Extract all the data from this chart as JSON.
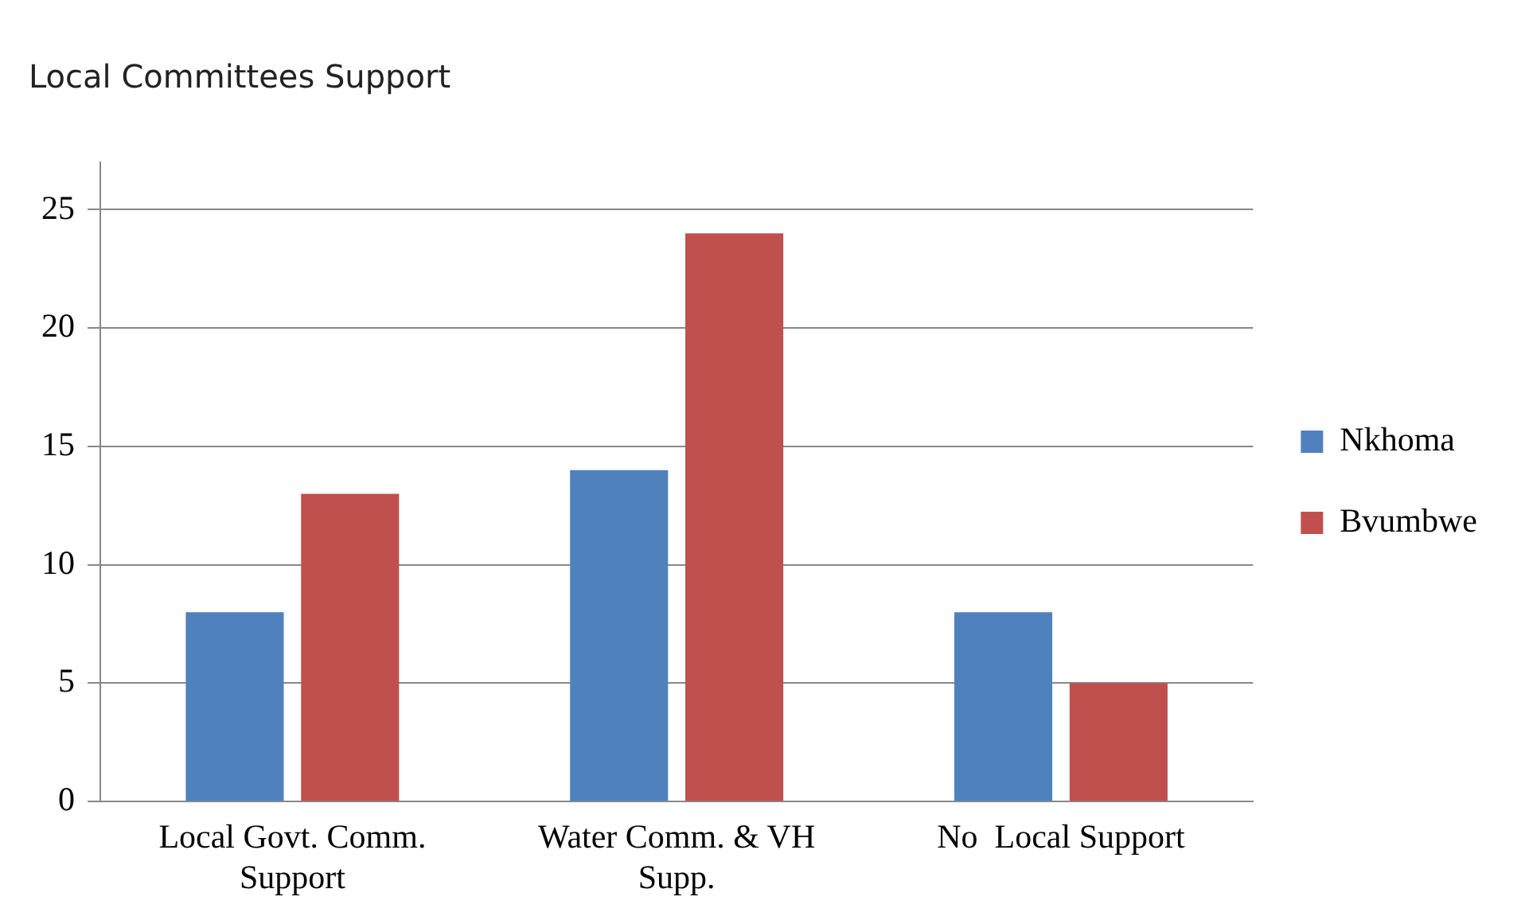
{
  "chart_data": {
    "type": "bar",
    "title": "Local Committees Support",
    "categories": [
      "Local Govt. Comm. Support",
      "Water Comm. & VH Supp.",
      "No  Local Support"
    ],
    "series": [
      {
        "name": "Nkhoma",
        "color": "#4f81bd",
        "values": [
          8,
          14,
          8
        ]
      },
      {
        "name": "Bvumbwe",
        "color": "#c0504d",
        "values": [
          13,
          24,
          5
        ]
      }
    ],
    "ylim": [
      0,
      27
    ],
    "yticks": [
      0,
      5,
      10,
      15,
      20,
      25
    ],
    "grid": "y",
    "legend": "right"
  }
}
